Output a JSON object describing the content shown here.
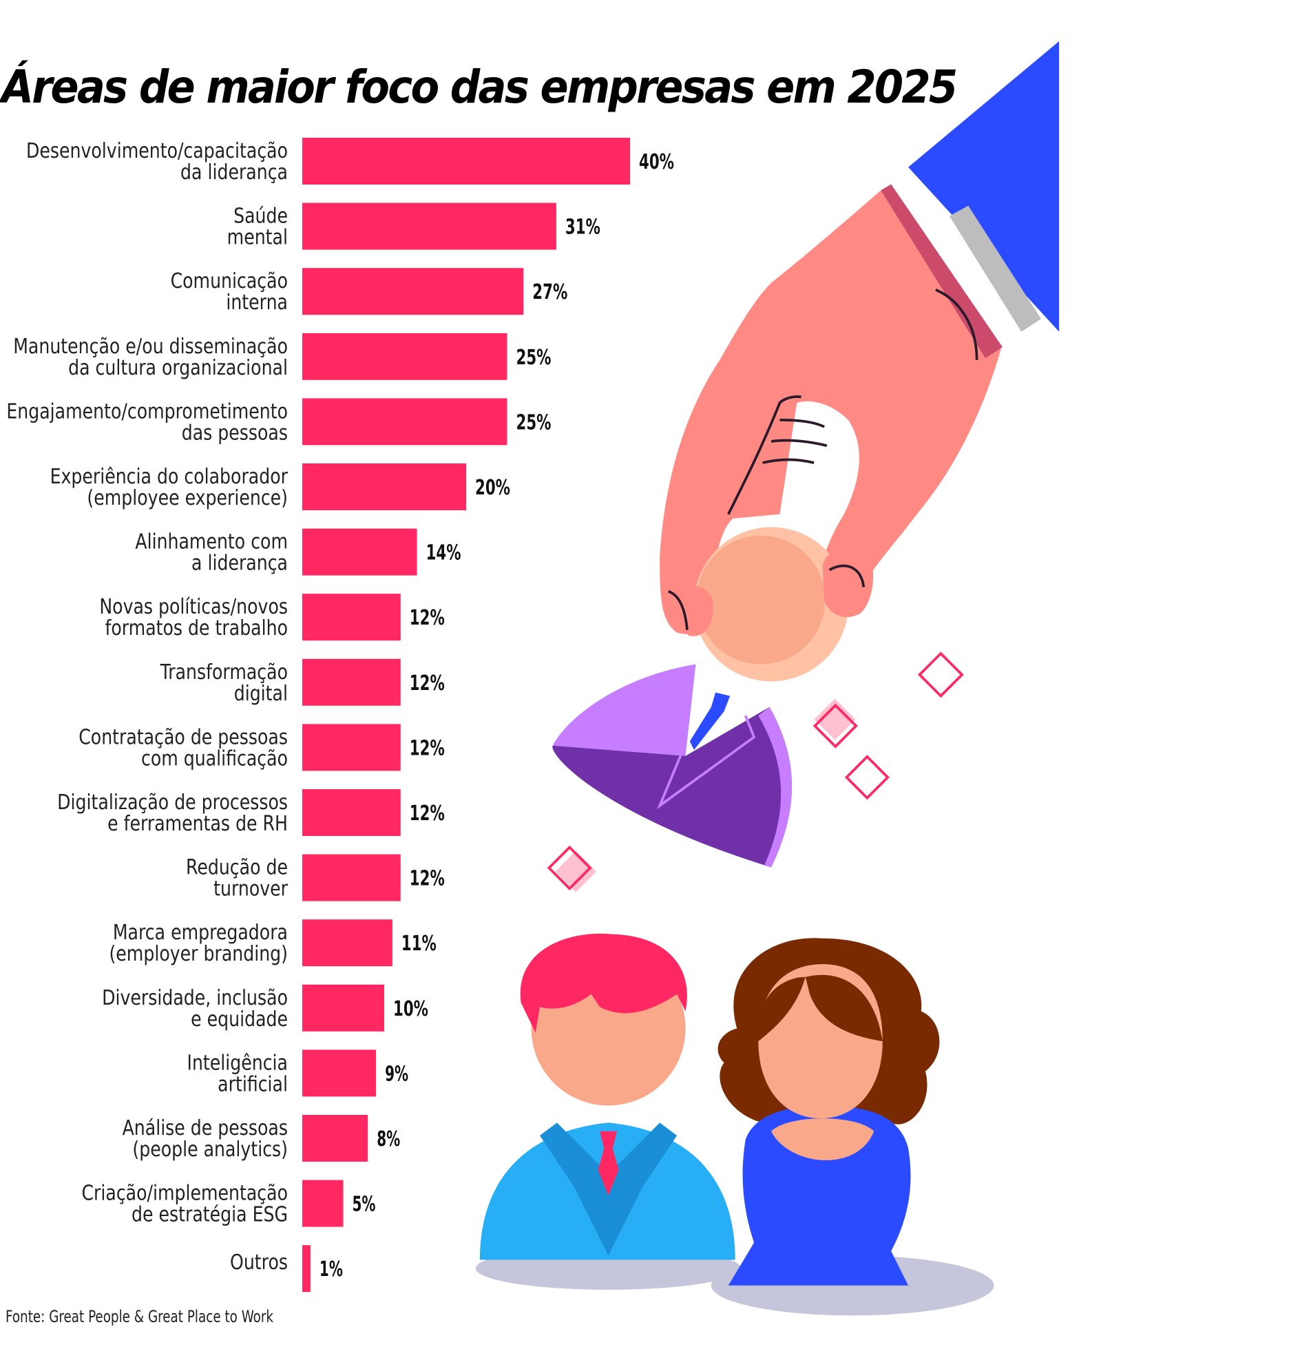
{
  "chart_data": {
    "type": "bar",
    "orientation": "horizontal",
    "title": "Áreas de maior foco das empresas em 2025",
    "categories": [
      [
        "Desenvolvimento/capacitação",
        "da liderança"
      ],
      [
        "Saúde",
        "mental"
      ],
      [
        "Comunicação",
        "interna"
      ],
      [
        "Manutenção e/ou disseminação",
        "da cultura organizacional"
      ],
      [
        "Engajamento/comprometimento",
        "das pessoas"
      ],
      [
        "Experiência do colaborador",
        "(employee experience)"
      ],
      [
        "Alinhamento com",
        "a liderança"
      ],
      [
        "Novas políticas/novos",
        "formatos de trabalho"
      ],
      [
        "Transformação",
        "digital"
      ],
      [
        "Contratação de pessoas",
        "com qualificação"
      ],
      [
        "Digitalização de processos",
        "e ferramentas de RH"
      ],
      [
        "Redução de",
        "turnover"
      ],
      [
        "Marca empregadora",
        "(employer branding)"
      ],
      [
        "Diversidade, inclusão",
        "e equidade"
      ],
      [
        "Inteligência",
        "artificial"
      ],
      [
        "Análise de pessoas",
        "(people analytics)"
      ],
      [
        "Criação/implementação",
        "de estratégia ESG"
      ],
      [
        "Outros"
      ]
    ],
    "values": [
      40,
      31,
      27,
      25,
      25,
      20,
      14,
      12,
      12,
      12,
      12,
      12,
      11,
      10,
      9,
      8,
      5,
      1
    ],
    "value_labels": [
      "40%",
      "31%",
      "27%",
      "25%",
      "25%",
      "20%",
      "14%",
      "12%",
      "12%",
      "12%",
      "12%",
      "12%",
      "11%",
      "10%",
      "9%",
      "8%",
      "5%",
      "1%"
    ],
    "unit": "%",
    "xlim": [
      0,
      40
    ],
    "grid": false,
    "legend": "none",
    "bar_color": "#ff2862"
  },
  "source": "Fonte: Great People & Great Place to Work"
}
